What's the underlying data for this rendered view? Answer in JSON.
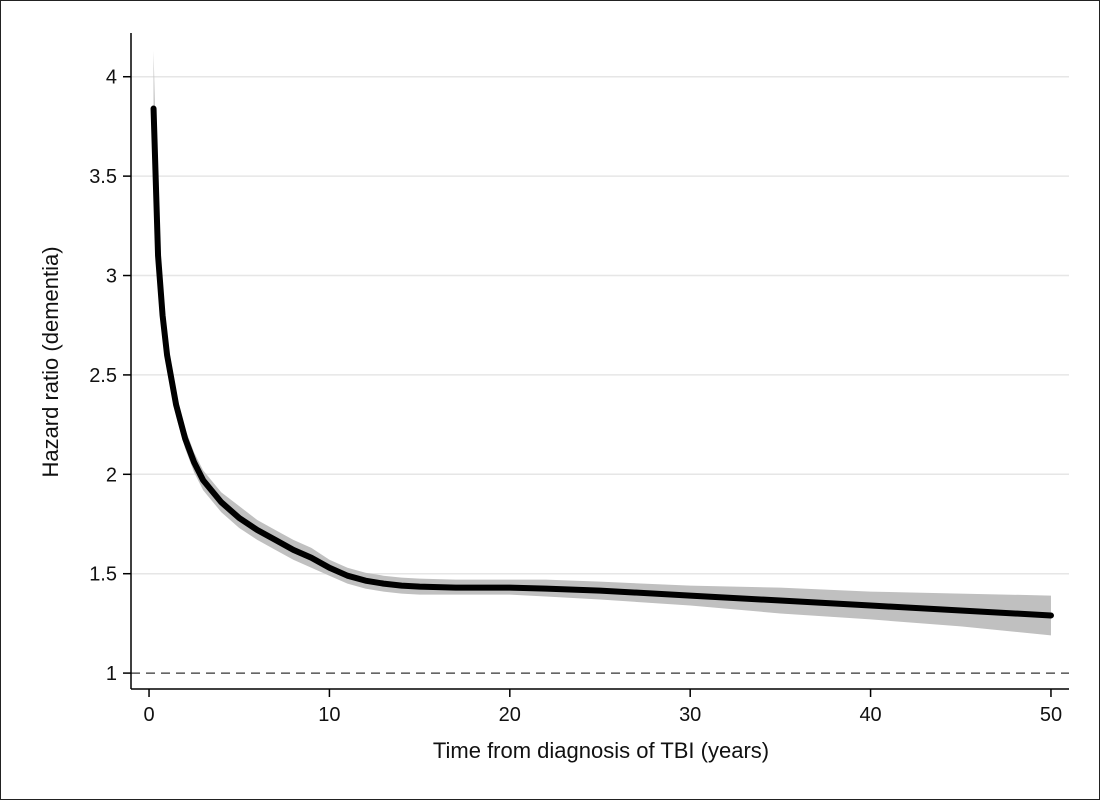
{
  "chart_data": {
    "type": "line",
    "title": "",
    "xlabel": "Time from diagnosis of TBI (years)",
    "ylabel": "Hazard ratio (dementia)",
    "xlim": [
      -1,
      51
    ],
    "ylim": [
      0.92,
      4.22
    ],
    "x_ticks": [
      0,
      10,
      20,
      30,
      40,
      50
    ],
    "x_tick_labels": [
      "0",
      "10",
      "20",
      "30",
      "40",
      "50"
    ],
    "y_ticks": [
      1,
      1.5,
      2,
      2.5,
      3,
      3.5,
      4
    ],
    "y_tick_labels": [
      "1",
      "1.5",
      "2",
      "2.5",
      "3",
      "3.5",
      "4"
    ],
    "grid": "horizontal",
    "reference_line": {
      "y": 1,
      "style": "dashed"
    },
    "colors": {
      "line": "#000000",
      "band": "#c0c0c0",
      "grid": "#e6e6e6"
    },
    "series": [
      {
        "x": [
          0.25,
          0.5,
          0.75,
          1,
          1.5,
          2,
          2.5,
          3,
          4,
          5,
          6,
          7,
          8,
          9,
          10,
          11,
          12,
          13,
          14,
          15,
          17,
          20,
          22,
          25,
          30,
          35,
          40,
          45,
          50
        ],
        "y": [
          3.84,
          3.1,
          2.8,
          2.6,
          2.35,
          2.18,
          2.06,
          1.97,
          1.86,
          1.78,
          1.72,
          1.67,
          1.62,
          1.58,
          1.53,
          1.49,
          1.465,
          1.45,
          1.44,
          1.435,
          1.43,
          1.43,
          1.425,
          1.415,
          1.39,
          1.365,
          1.34,
          1.315,
          1.29
        ],
        "lower": [
          3.55,
          2.95,
          2.7,
          2.52,
          2.29,
          2.13,
          2.01,
          1.92,
          1.81,
          1.73,
          1.67,
          1.62,
          1.57,
          1.53,
          1.49,
          1.45,
          1.425,
          1.41,
          1.4,
          1.395,
          1.395,
          1.395,
          1.385,
          1.37,
          1.34,
          1.3,
          1.27,
          1.235,
          1.19
        ],
        "upper": [
          4.13,
          3.25,
          2.9,
          2.68,
          2.41,
          2.23,
          2.11,
          2.02,
          1.91,
          1.84,
          1.77,
          1.72,
          1.67,
          1.63,
          1.57,
          1.53,
          1.505,
          1.49,
          1.48,
          1.475,
          1.47,
          1.47,
          1.47,
          1.46,
          1.44,
          1.43,
          1.41,
          1.4,
          1.39
        ]
      }
    ]
  }
}
